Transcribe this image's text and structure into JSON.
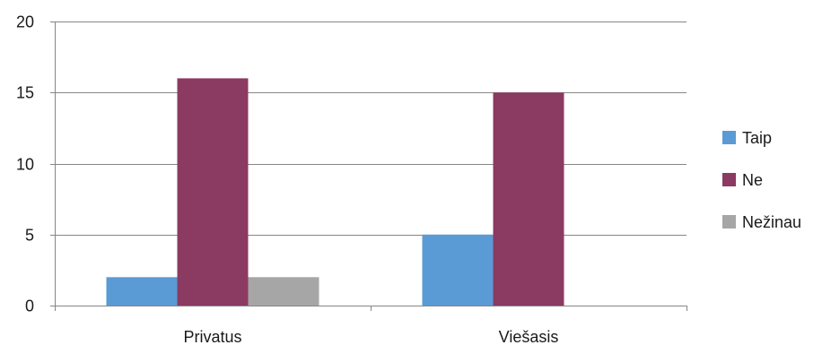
{
  "chart_data": {
    "type": "bar",
    "title": "",
    "xlabel": "",
    "ylabel": "",
    "categories": [
      "Privatus",
      "Viešasis"
    ],
    "series": [
      {
        "name": "Taip",
        "color": "#5b9bd5",
        "values": [
          2,
          5
        ]
      },
      {
        "name": "Ne",
        "color": "#8b3a62",
        "values": [
          16,
          15
        ]
      },
      {
        "name": "Nežinau",
        "color": "#a6a6a6",
        "values": [
          2,
          0
        ]
      }
    ],
    "ylim": [
      0,
      20
    ],
    "yticks": [
      0,
      5,
      10,
      15,
      20
    ],
    "grid": true,
    "legend_position": "right"
  }
}
